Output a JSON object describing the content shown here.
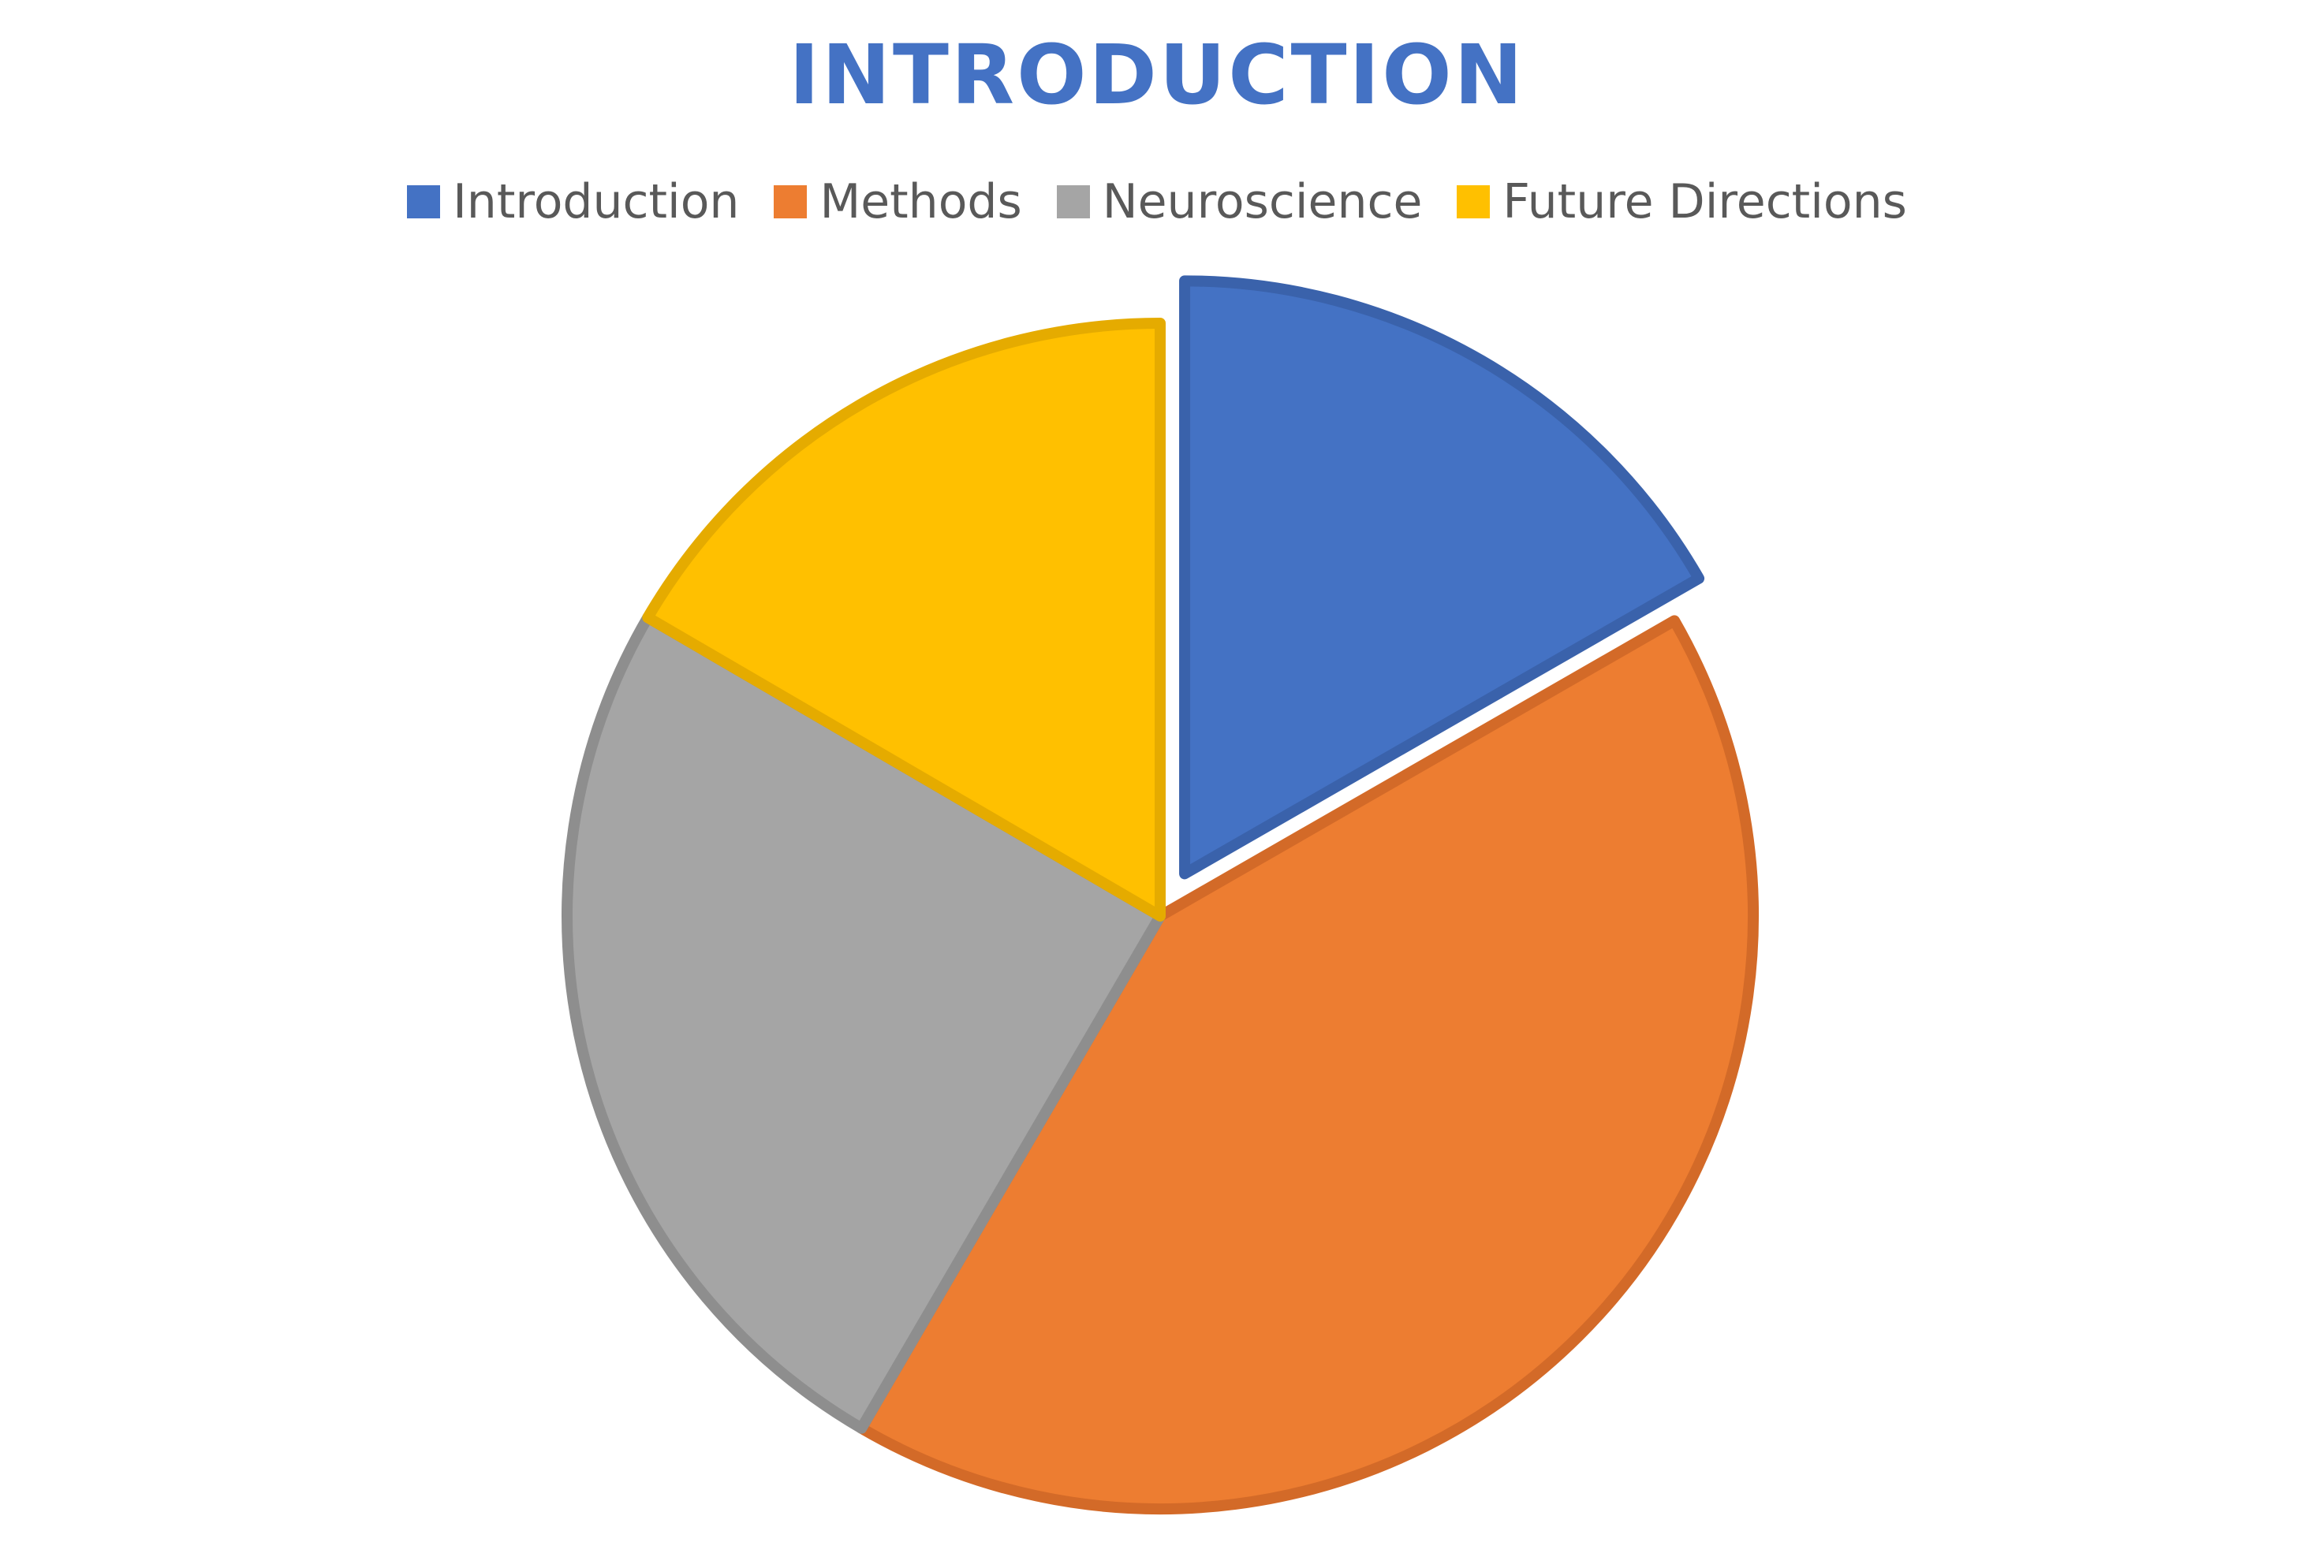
{
  "chart_data": {
    "type": "pie",
    "title": "INTRODUCTION",
    "categories": [
      "Introduction",
      "Methods",
      "Neuroscience",
      "Future Directions"
    ],
    "values": [
      16.7,
      41.7,
      25.0,
      16.6
    ],
    "colors": [
      "#4472c4",
      "#ed7d31",
      "#a5a5a5",
      "#ffc000"
    ],
    "border_colors": [
      "#3a62ab",
      "#d36a28",
      "#8e8e8e",
      "#e5ab00"
    ],
    "exploded": [
      "Introduction"
    ],
    "legend_position": "top",
    "start_angle_deg": 0,
    "direction": "clockwise"
  },
  "colors": {
    "title": "#4472c4",
    "legend_text": "#595959",
    "background": "#ffffff"
  }
}
